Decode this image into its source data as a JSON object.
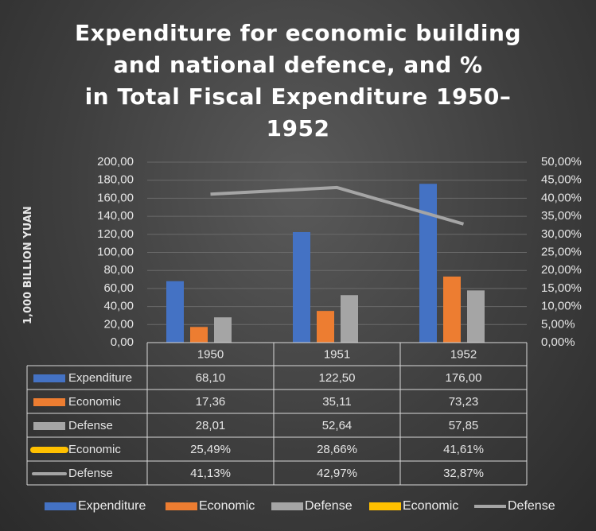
{
  "chart_data": {
    "type": "bar",
    "title_lines": [
      "Expenditure for economic building",
      "and national defence, and %",
      "in Total Fiscal Expenditure 1950–",
      "1952"
    ],
    "ylabel": "1,000 BILLION YUAN",
    "categories": [
      "1950",
      "1951",
      "1952"
    ],
    "ylim": [
      0,
      200
    ],
    "y2lim": [
      0,
      50
    ],
    "y_ticks": [
      "0,00",
      "20,00",
      "40,00",
      "60,00",
      "80,00",
      "100,00",
      "120,00",
      "140,00",
      "160,00",
      "180,00",
      "200,00"
    ],
    "y2_ticks": [
      "0,00%",
      "5,00%",
      "10,00%",
      "15,00%",
      "20,00%",
      "25,00%",
      "30,00%",
      "35,00%",
      "40,00%",
      "45,00%",
      "50,00%"
    ],
    "series": [
      {
        "name": "Expenditure",
        "kind": "bar",
        "axis": "left",
        "color": "#4472C4",
        "values": [
          68.1,
          122.5,
          176.0
        ],
        "labels": [
          "68,10",
          "122,50",
          "176,00"
        ]
      },
      {
        "name": "Economic",
        "kind": "bar",
        "axis": "left",
        "color": "#ED7D31",
        "values": [
          17.36,
          35.11,
          73.23
        ],
        "labels": [
          "17,36",
          "35,11",
          "73,23"
        ]
      },
      {
        "name": "Defense",
        "kind": "bar",
        "axis": "left",
        "color": "#A5A5A5",
        "values": [
          28.01,
          52.64,
          57.85
        ],
        "labels": [
          "28,01",
          "52,64",
          "57,85"
        ]
      },
      {
        "name": "Economic",
        "kind": "line",
        "axis": "right",
        "color": "#FFC000",
        "values": [
          25.49,
          28.66,
          41.61
        ],
        "labels": [
          "25,49%",
          "28,66%",
          "41,61%"
        ]
      },
      {
        "name": "Defense",
        "kind": "line",
        "axis": "right",
        "color": "#A5A5A5",
        "values": [
          41.13,
          42.97,
          32.87
        ],
        "labels": [
          "41,13%",
          "42,97%",
          "32,87%"
        ]
      }
    ],
    "legend_position": "bottom",
    "grid": true,
    "data_table": true
  }
}
